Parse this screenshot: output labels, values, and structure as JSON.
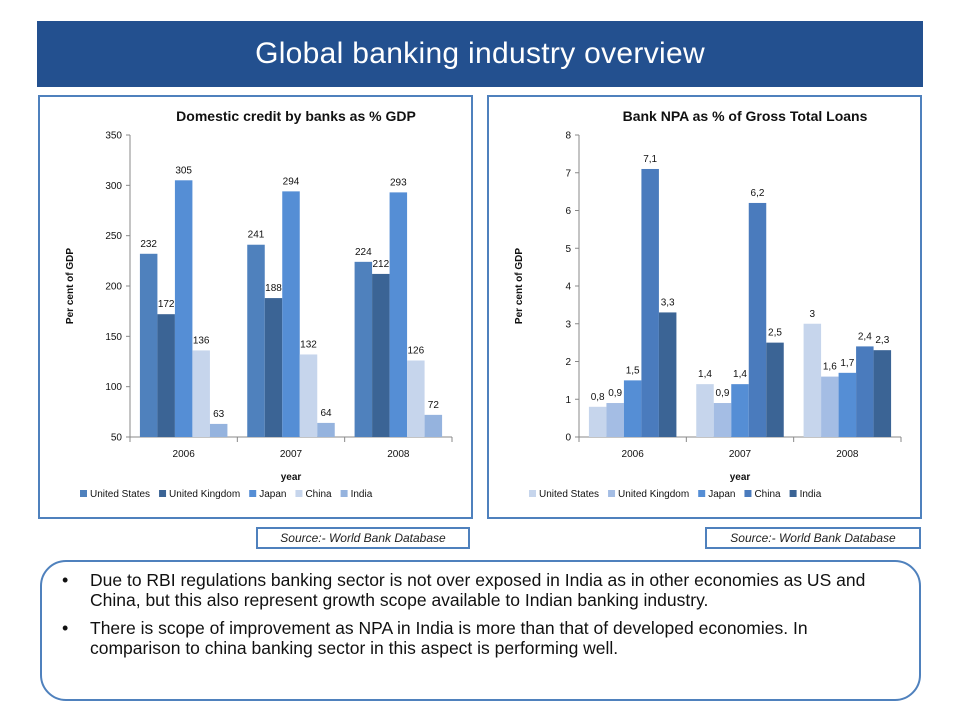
{
  "title": "Global banking industry overview",
  "sources": {
    "left": "Source:- World Bank Database",
    "right": "Source:- World Bank Database"
  },
  "bullets": [
    "Due to RBI regulations banking sector is not over exposed in India as in other economies as US and China, but this also represent growth scope available to Indian banking industry.",
    "There is scope of improvement as NPA in India is more than that of developed economies. In comparison to china banking sector in this aspect is performing well."
  ],
  "bullet_glyph": "•",
  "chart_data": [
    {
      "type": "bar",
      "title": "Domestic credit by banks as % GDP",
      "xlabel": "year",
      "ylabel": "Per cent of GDP",
      "categories": [
        "2006",
        "2007",
        "2008"
      ],
      "ylim": [
        50,
        350
      ],
      "yticks": [
        50,
        100,
        150,
        200,
        250,
        300,
        350
      ],
      "ytick_labels": [
        "50",
        "100",
        "150",
        "200",
        "250",
        "300",
        "350"
      ],
      "series": [
        {
          "name": "United States",
          "color": "#4f81bd",
          "values": [
            232,
            241,
            224
          ],
          "labels": [
            "232",
            "241",
            "224"
          ]
        },
        {
          "name": "United Kingdom",
          "color": "#3b6495",
          "values": [
            172,
            188,
            212
          ],
          "labels": [
            "172",
            "188",
            "212"
          ]
        },
        {
          "name": "Japan",
          "color": "#558ed5",
          "values": [
            305,
            294,
            293
          ],
          "labels": [
            "305",
            "294",
            "293"
          ]
        },
        {
          "name": "China",
          "color": "#c6d5ec",
          "values": [
            136,
            132,
            126
          ],
          "labels": [
            "136",
            "132",
            "126"
          ]
        },
        {
          "name": "India",
          "color": "#95b3de",
          "values": [
            63,
            64,
            72
          ],
          "labels": [
            "63",
            "64",
            "72"
          ]
        }
      ],
      "legend_position": "bottom",
      "grid": false
    },
    {
      "type": "bar",
      "title": "Bank NPA as % of Gross Total Loans",
      "xlabel": "year",
      "ylabel": "Per cent of GDP",
      "categories": [
        "2006",
        "2007",
        "2008"
      ],
      "ylim": [
        0,
        8
      ],
      "yticks": [
        0,
        1,
        2,
        3,
        4,
        5,
        6,
        7,
        8
      ],
      "ytick_labels": [
        "0",
        "1",
        "2",
        "3",
        "4",
        "5",
        "6",
        "7",
        "8"
      ],
      "series": [
        {
          "name": "United States",
          "color": "#c6d5ec",
          "values": [
            0.8,
            1.4,
            3
          ],
          "labels": [
            "0,8",
            "1,4",
            "3"
          ]
        },
        {
          "name": "United Kingdom",
          "color": "#a4bde4",
          "values": [
            0.9,
            0.9,
            1.6
          ],
          "labels": [
            "0,9",
            "0,9",
            "1,6"
          ]
        },
        {
          "name": "Japan",
          "color": "#558ed5",
          "values": [
            1.5,
            1.4,
            1.7
          ],
          "labels": [
            "1,5",
            "1,4",
            "1,7"
          ]
        },
        {
          "name": "China",
          "color": "#4a7bbd",
          "values": [
            7.1,
            6.2,
            2.4
          ],
          "labels": [
            "7,1",
            "6,2",
            "2,4"
          ]
        },
        {
          "name": "India",
          "color": "#3b6495",
          "values": [
            3.3,
            2.5,
            2.3
          ],
          "labels": [
            "3,3",
            "2,5",
            "2,3"
          ]
        }
      ],
      "legend_position": "bottom",
      "grid": false
    }
  ]
}
